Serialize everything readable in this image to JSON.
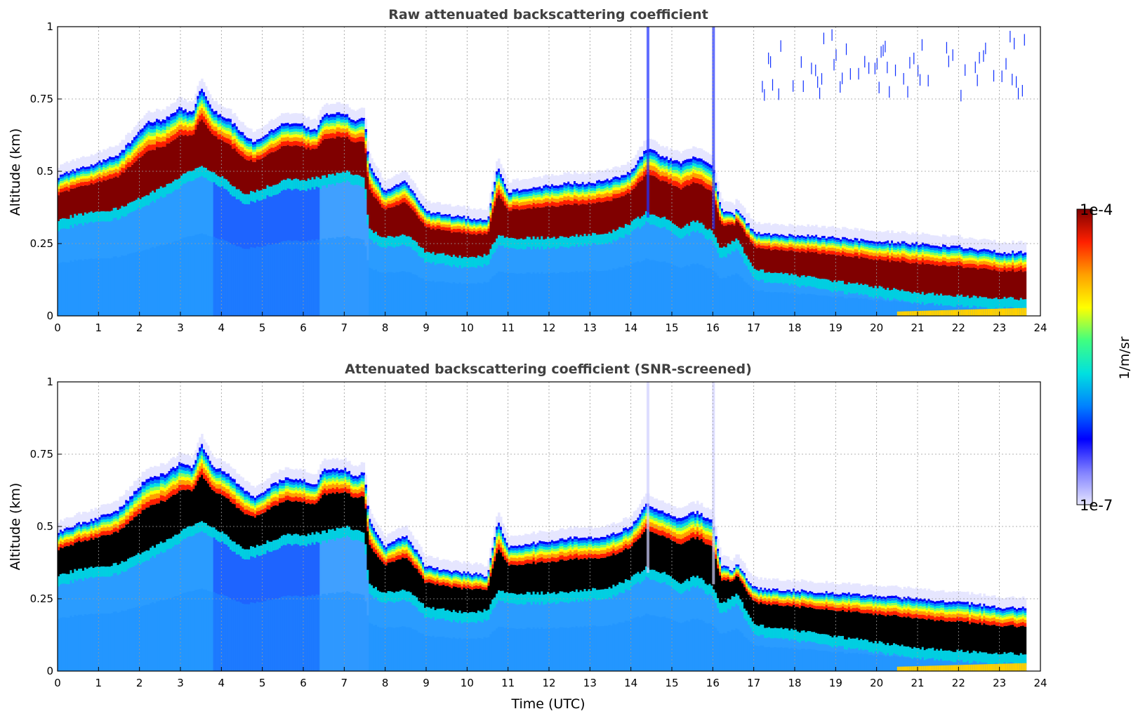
{
  "chart_data": [
    {
      "type": "heatmap",
      "title": "Raw attenuated backscattering coefficient",
      "xlabel": "",
      "ylabel": "Altitude (km)",
      "xlim": [
        0,
        24
      ],
      "ylim": [
        0,
        1
      ],
      "xticks": [
        "0",
        "1",
        "2",
        "3",
        "4",
        "5",
        "6",
        "7",
        "8",
        "9",
        "10",
        "11",
        "12",
        "13",
        "14",
        "15",
        "16",
        "17",
        "18",
        "19",
        "20",
        "21",
        "22",
        "23",
        "24"
      ],
      "yticks": [
        "0",
        "0.25",
        "0.5",
        "0.75",
        "1"
      ],
      "grid": true,
      "screened": false,
      "layer_top_km": [
        [
          0,
          0.48
        ],
        [
          0.5,
          0.51
        ],
        [
          1,
          0.53
        ],
        [
          1.5,
          0.56
        ],
        [
          1.9,
          0.62
        ],
        [
          2.2,
          0.67
        ],
        [
          2.6,
          0.68
        ],
        [
          3.0,
          0.72
        ],
        [
          3.3,
          0.7
        ],
        [
          3.5,
          0.79
        ],
        [
          3.8,
          0.71
        ],
        [
          4.2,
          0.68
        ],
        [
          4.6,
          0.62
        ],
        [
          4.8,
          0.6
        ],
        [
          5.2,
          0.64
        ],
        [
          5.6,
          0.67
        ],
        [
          6.0,
          0.66
        ],
        [
          6.3,
          0.64
        ],
        [
          6.5,
          0.7
        ],
        [
          7.0,
          0.7
        ],
        [
          7.3,
          0.67
        ],
        [
          7.5,
          0.69
        ],
        [
          7.6,
          0.53
        ],
        [
          8.0,
          0.43
        ],
        [
          8.5,
          0.47
        ],
        [
          8.8,
          0.41
        ],
        [
          9.0,
          0.36
        ],
        [
          9.5,
          0.35
        ],
        [
          10.0,
          0.34
        ],
        [
          10.5,
          0.33
        ],
        [
          10.75,
          0.52
        ],
        [
          11.0,
          0.43
        ],
        [
          11.5,
          0.44
        ],
        [
          12.0,
          0.45
        ],
        [
          12.5,
          0.46
        ],
        [
          13.0,
          0.46
        ],
        [
          13.5,
          0.47
        ],
        [
          14.0,
          0.5
        ],
        [
          14.4,
          0.58
        ],
        [
          14.8,
          0.55
        ],
        [
          15.2,
          0.53
        ],
        [
          15.6,
          0.55
        ],
        [
          16.0,
          0.52
        ],
        [
          16.2,
          0.37
        ],
        [
          16.5,
          0.35
        ],
        [
          16.6,
          0.37
        ],
        [
          17.0,
          0.29
        ],
        [
          17.5,
          0.28
        ],
        [
          18.0,
          0.28
        ],
        [
          19.0,
          0.27
        ],
        [
          20.0,
          0.26
        ],
        [
          21.0,
          0.25
        ],
        [
          22.0,
          0.24
        ],
        [
          23.0,
          0.22
        ],
        [
          23.65,
          0.22
        ]
      ],
      "layer_base_km": [
        [
          0,
          0.33
        ],
        [
          0.5,
          0.35
        ],
        [
          1,
          0.36
        ],
        [
          1.5,
          0.37
        ],
        [
          1.9,
          0.4
        ],
        [
          2.5,
          0.44
        ],
        [
          3.0,
          0.48
        ],
        [
          3.5,
          0.52
        ],
        [
          4.0,
          0.48
        ],
        [
          4.6,
          0.42
        ],
        [
          5.0,
          0.44
        ],
        [
          5.6,
          0.47
        ],
        [
          6.0,
          0.47
        ],
        [
          6.5,
          0.48
        ],
        [
          7.0,
          0.5
        ],
        [
          7.5,
          0.48
        ],
        [
          7.6,
          0.3
        ],
        [
          8.0,
          0.27
        ],
        [
          8.5,
          0.28
        ],
        [
          8.8,
          0.25
        ],
        [
          9.0,
          0.22
        ],
        [
          9.5,
          0.21
        ],
        [
          10.0,
          0.2
        ],
        [
          10.5,
          0.21
        ],
        [
          10.75,
          0.28
        ],
        [
          11.0,
          0.27
        ],
        [
          12.0,
          0.27
        ],
        [
          13.0,
          0.28
        ],
        [
          13.5,
          0.29
        ],
        [
          14.0,
          0.32
        ],
        [
          14.4,
          0.36
        ],
        [
          14.8,
          0.34
        ],
        [
          15.2,
          0.3
        ],
        [
          15.6,
          0.33
        ],
        [
          16.0,
          0.29
        ],
        [
          16.2,
          0.23
        ],
        [
          16.6,
          0.27
        ],
        [
          17.0,
          0.16
        ],
        [
          18.0,
          0.14
        ],
        [
          19.0,
          0.12
        ],
        [
          20.0,
          0.1
        ],
        [
          21.0,
          0.08
        ],
        [
          22.0,
          0.07
        ],
        [
          23.0,
          0.06
        ],
        [
          23.65,
          0.06
        ]
      ]
    },
    {
      "type": "heatmap",
      "title": "Attenuated backscattering coefficient (SNR-screened)",
      "xlabel": "Time (UTC)",
      "ylabel": "Altitude (km)",
      "xlim": [
        0,
        24
      ],
      "ylim": [
        0,
        1
      ],
      "xticks": [
        "0",
        "1",
        "2",
        "3",
        "4",
        "5",
        "6",
        "7",
        "8",
        "9",
        "10",
        "11",
        "12",
        "13",
        "14",
        "15",
        "16",
        "17",
        "18",
        "19",
        "20",
        "21",
        "22",
        "23",
        "24"
      ],
      "yticks": [
        "0",
        "0.25",
        "0.5",
        "0.75",
        "1"
      ],
      "grid": true,
      "screened": true,
      "colorbar": {
        "label": "1/m/sr",
        "max_label": "1e-4",
        "min_label": "1e-7",
        "colormap": [
          "#e6e6ff",
          "#8080ff",
          "#0000ff",
          "#0080ff",
          "#00e0e0",
          "#40ff80",
          "#ffff00",
          "#ffa000",
          "#ff2000",
          "#800000"
        ]
      }
    }
  ]
}
